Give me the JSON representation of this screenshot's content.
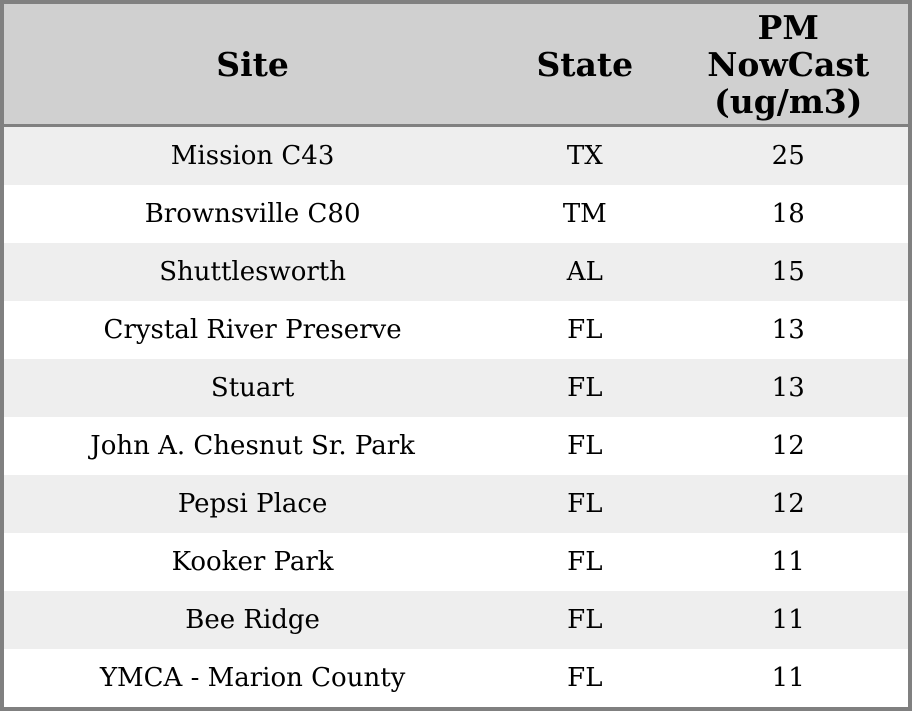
{
  "colors": {
    "outer_border": "#808080",
    "header_bg": "#d0d0d0",
    "header_divider": "#808080",
    "row_stripe_bg": "#eeeeee",
    "row_bg": "#ffffff",
    "text": "#000000"
  },
  "chart_data": {
    "type": "table",
    "columns": [
      {
        "id": "site",
        "label": "Site"
      },
      {
        "id": "state",
        "label": "State"
      },
      {
        "id": "pm_nowcast",
        "label": "PM\nNowCast\n(ug/m3)",
        "full_label": "PM NowCast (ug/m3)"
      }
    ],
    "rows": [
      [
        "Mission C43",
        "TX",
        25
      ],
      [
        "Brownsville C80",
        "TM",
        18
      ],
      [
        "Shuttlesworth",
        "AL",
        15
      ],
      [
        "Crystal River Preserve",
        "FL",
        13
      ],
      [
        "Stuart",
        "FL",
        13
      ],
      [
        "John A. Chesnut Sr. Park",
        "FL",
        12
      ],
      [
        "Pepsi Place",
        "FL",
        12
      ],
      [
        "Kooker Park",
        "FL",
        11
      ],
      [
        "Bee Ridge",
        "FL",
        11
      ],
      [
        "YMCA - Marion County",
        "FL",
        11
      ]
    ]
  }
}
